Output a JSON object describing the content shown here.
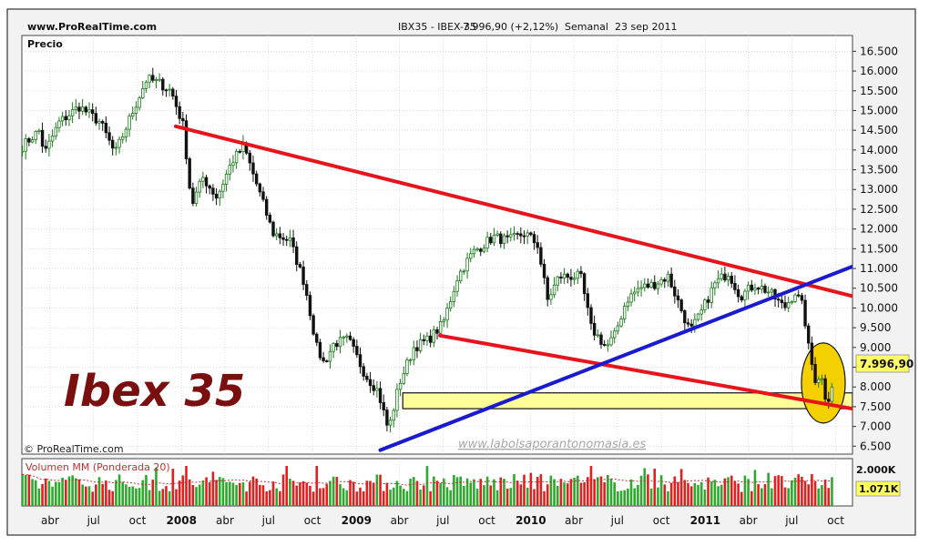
{
  "header": {
    "site": "www.ProRealTime.com",
    "instrument": "IBX35 - IBEX-35",
    "quote": "7.996,90 (+2,12%)",
    "period": "Semanal",
    "date": "23 sep 2011"
  },
  "panel_label": "Precio",
  "watermark_copyright": "© ProRealTime.com",
  "watermark_url": "www.labolsaporantonomasia.es",
  "big_title": "Ibex 35",
  "last_price_badge": "7.996,90",
  "colors": {
    "up": "#1a7a1a",
    "down": "#111111",
    "red_line": "#e8141b",
    "blue_line": "#1a1ad0",
    "zone_fill": "#ffff99",
    "circle_fill": "#f5d000",
    "title_color": "#7a0f0f",
    "vol_up": "#2ea82e",
    "vol_down": "#e02020",
    "grid": "#c8c8c8",
    "badge": "#ffff66"
  },
  "chart_data": {
    "type": "candlestick",
    "timeframe": "weekly",
    "ylim": [
      6300,
      16900
    ],
    "y_ticks": [
      6500,
      7000,
      7500,
      8000,
      8500,
      9000,
      9500,
      10000,
      10500,
      11000,
      11500,
      12000,
      12500,
      13000,
      13500,
      14000,
      14500,
      15000,
      15500,
      16000,
      16500
    ],
    "y_tick_labels": [
      "6.500",
      "7.000",
      "7.500",
      "8.000",
      "8.500",
      "9.000",
      "9.500",
      "10.000",
      "10.500",
      "11.000",
      "11.500",
      "12.000",
      "12.500",
      "13.000",
      "13.500",
      "14.000",
      "14.500",
      "15.000",
      "15.500",
      "16.000",
      "16.500"
    ],
    "x_range": [
      "2007-02-01",
      "2011-11-05"
    ],
    "x_ticks": [
      {
        "date": "2007-04-01",
        "label": "abr",
        "bold": false
      },
      {
        "date": "2007-07-01",
        "label": "jul",
        "bold": false
      },
      {
        "date": "2007-10-01",
        "label": "oct",
        "bold": false
      },
      {
        "date": "2008-01-01",
        "label": "2008",
        "bold": true
      },
      {
        "date": "2008-04-01",
        "label": "abr",
        "bold": false
      },
      {
        "date": "2008-07-01",
        "label": "jul",
        "bold": false
      },
      {
        "date": "2008-10-01",
        "label": "oct",
        "bold": false
      },
      {
        "date": "2009-01-01",
        "label": "2009",
        "bold": true
      },
      {
        "date": "2009-04-01",
        "label": "abr",
        "bold": false
      },
      {
        "date": "2009-07-01",
        "label": "jul",
        "bold": false
      },
      {
        "date": "2009-10-01",
        "label": "oct",
        "bold": false
      },
      {
        "date": "2010-01-01",
        "label": "2010",
        "bold": true
      },
      {
        "date": "2010-04-01",
        "label": "abr",
        "bold": false
      },
      {
        "date": "2010-07-01",
        "label": "jul",
        "bold": false
      },
      {
        "date": "2010-10-01",
        "label": "oct",
        "bold": false
      },
      {
        "date": "2011-01-01",
        "label": "2011",
        "bold": true
      },
      {
        "date": "2011-04-01",
        "label": "abr",
        "bold": false
      },
      {
        "date": "2011-07-01",
        "label": "jul",
        "bold": false
      },
      {
        "date": "2011-10-01",
        "label": "oct",
        "bold": false
      }
    ],
    "close_path": [
      [
        "2007-02-02",
        14100
      ],
      [
        "2007-03-10",
        14500
      ],
      [
        "2007-03-20",
        13900
      ],
      [
        "2007-04-20",
        14700
      ],
      [
        "2007-06-01",
        15100
      ],
      [
        "2007-07-15",
        14700
      ],
      [
        "2007-08-15",
        13900
      ],
      [
        "2007-09-15",
        14800
      ],
      [
        "2007-10-20",
        15800
      ],
      [
        "2007-11-15",
        15700
      ],
      [
        "2007-12-10",
        15500
      ],
      [
        "2008-01-05",
        14600
      ],
      [
        "2008-01-22",
        12600
      ],
      [
        "2008-02-15",
        13300
      ],
      [
        "2008-03-15",
        12800
      ],
      [
        "2008-04-15",
        13700
      ],
      [
        "2008-05-10",
        14100
      ],
      [
        "2008-06-10",
        13000
      ],
      [
        "2008-07-10",
        11900
      ],
      [
        "2008-08-15",
        11700
      ],
      [
        "2008-09-15",
        10600
      ],
      [
        "2008-10-10",
        9000
      ],
      [
        "2008-10-25",
        8600
      ],
      [
        "2008-11-15",
        9100
      ],
      [
        "2008-12-15",
        9200
      ],
      [
        "2009-01-20",
        8300
      ],
      [
        "2009-02-15",
        7900
      ],
      [
        "2009-03-09",
        6900
      ],
      [
        "2009-04-01",
        8100
      ],
      [
        "2009-05-01",
        9000
      ],
      [
        "2009-06-01",
        9200
      ],
      [
        "2009-07-01",
        9600
      ],
      [
        "2009-08-01",
        10800
      ],
      [
        "2009-09-01",
        11400
      ],
      [
        "2009-10-15",
        11800
      ],
      [
        "2009-11-15",
        11700
      ],
      [
        "2009-12-20",
        11900
      ],
      [
        "2010-01-15",
        11600
      ],
      [
        "2010-02-05",
        10200
      ],
      [
        "2010-03-01",
        10800
      ],
      [
        "2010-04-15",
        10800
      ],
      [
        "2010-05-07",
        9500
      ],
      [
        "2010-06-08",
        9000
      ],
      [
        "2010-06-25",
        9300
      ],
      [
        "2010-07-20",
        10200
      ],
      [
        "2010-08-15",
        10500
      ],
      [
        "2010-09-15",
        10600
      ],
      [
        "2010-10-15",
        10800
      ],
      [
        "2010-11-30",
        9400
      ],
      [
        "2010-12-20",
        9800
      ],
      [
        "2011-01-20",
        10600
      ],
      [
        "2011-02-18",
        10900
      ],
      [
        "2011-03-15",
        10300
      ],
      [
        "2011-04-15",
        10600
      ],
      [
        "2011-05-15",
        10400
      ],
      [
        "2011-06-15",
        10000
      ],
      [
        "2011-07-08",
        10400
      ],
      [
        "2011-07-25",
        10000
      ],
      [
        "2011-08-05",
        9000
      ],
      [
        "2011-08-18",
        8200
      ],
      [
        "2011-08-31",
        8300
      ],
      [
        "2011-09-12",
        7600
      ],
      [
        "2011-09-23",
        7997
      ]
    ],
    "annotations": {
      "upper_resistance": {
        "color": "red",
        "from": [
          "2007-12-20",
          14600
        ],
        "to": [
          "2011-11-05",
          10300
        ]
      },
      "lower_support": {
        "color": "red",
        "from": [
          "2009-06-25",
          9300
        ],
        "to": [
          "2011-11-05",
          7450
        ]
      },
      "rising_trendline": {
        "color": "blue",
        "from": [
          "2009-02-20",
          6400
        ],
        "to": [
          "2011-11-05",
          11050
        ]
      },
      "support_zone": {
        "from_date": "2009-04-08",
        "to_date": "2011-11-05",
        "low": 7450,
        "high": 7850
      },
      "highlight_circle": {
        "center": [
          "2011-09-05",
          8100
        ]
      }
    },
    "volume_panel": {
      "label": "Volumen MM (Ponderada 20)",
      "y_tick_labels": [
        "2.000K",
        "1.071K"
      ],
      "last_value": "1.071K"
    }
  }
}
